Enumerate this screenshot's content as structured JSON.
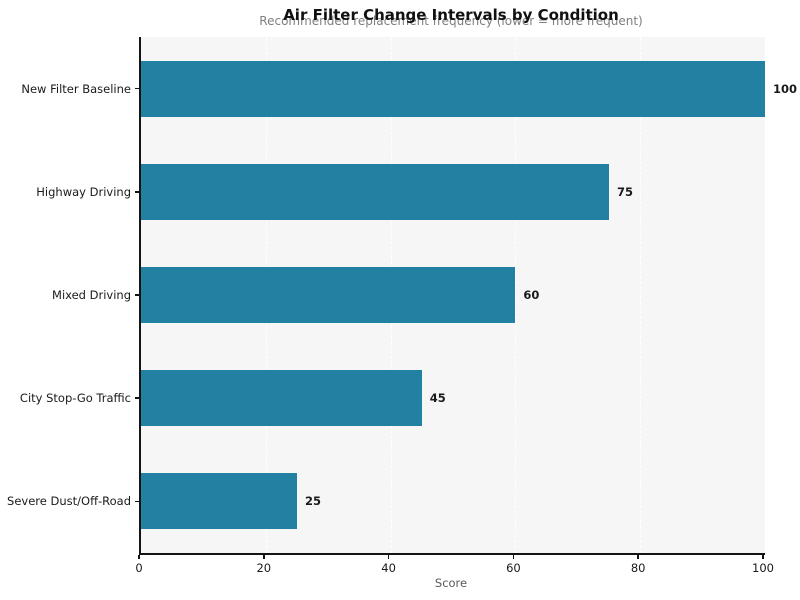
{
  "chart_data": {
    "type": "bar",
    "orientation": "horizontal",
    "title": "Air Filter Change Intervals by Condition",
    "subtitle": "Recommended replacement frequency (lower = more frequent)",
    "xlabel": "Score",
    "ylabel": "",
    "categories": [
      "New Filter Baseline",
      "Highway Driving",
      "Mixed Driving",
      "City Stop-Go Traffic",
      "Severe Dust/Off-Road"
    ],
    "values": [
      100,
      75,
      60,
      45,
      25
    ],
    "value_labels": [
      "100",
      "75",
      "60",
      "45",
      "25"
    ],
    "xlim": [
      0,
      100
    ],
    "xticks": [
      0,
      20,
      40,
      60,
      80,
      100
    ],
    "grid": "vertical white dashed gridlines at x ticks, behind bars",
    "legend": "none",
    "colors": {
      "bar": "#2280a2",
      "plot_background": "#f6f6f7",
      "figure_background": "#ffffff",
      "gridline": "#ffffff",
      "axis_spine": "#141414",
      "title": "#111111",
      "subtitle": "#7f7f7f",
      "tick_label": "#1a1a1a",
      "value_label": "#1a1a1a",
      "xlabel": "#595959"
    }
  }
}
